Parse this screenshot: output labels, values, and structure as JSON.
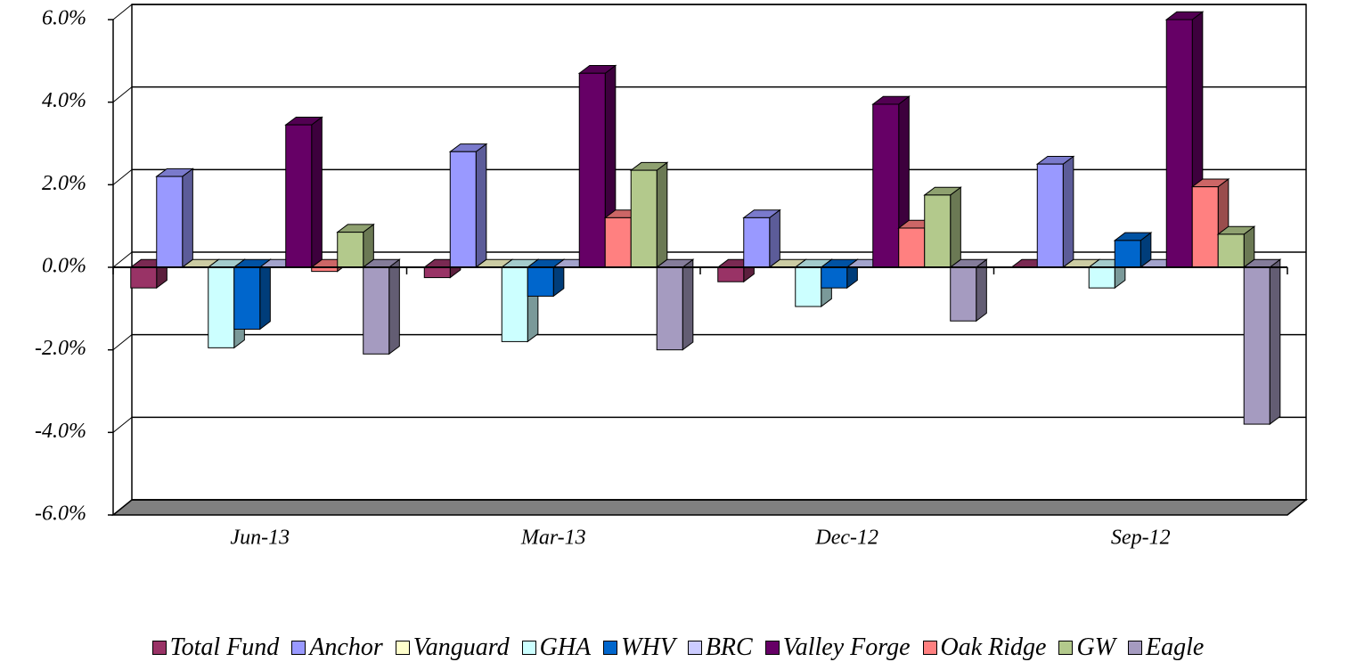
{
  "chart_data": {
    "type": "bar3d",
    "categories": [
      "Jun-13",
      "Mar-13",
      "Dec-12",
      "Sep-12"
    ],
    "series": [
      {
        "name": "Total Fund",
        "color": "#993366",
        "values": [
          -0.5,
          -0.25,
          -0.35,
          0
        ]
      },
      {
        "name": "Anchor",
        "color": "#9999ff",
        "values": [
          2.2,
          2.8,
          1.2,
          2.5
        ]
      },
      {
        "name": "Vanguard",
        "color": "#ffffcc",
        "values": [
          0,
          0,
          0,
          0
        ]
      },
      {
        "name": "GHA",
        "color": "#ccffff",
        "values": [
          -1.95,
          -1.8,
          -0.95,
          -0.5
        ]
      },
      {
        "name": "WHV",
        "color": "#0066cc",
        "values": [
          -1.5,
          -0.7,
          -0.5,
          0.65
        ]
      },
      {
        "name": "BRC",
        "color": "#ccccff",
        "values": [
          0,
          0,
          0,
          0
        ]
      },
      {
        "name": "Valley Forge",
        "color": "#660066",
        "values": [
          3.45,
          4.7,
          3.95,
          6.0
        ]
      },
      {
        "name": "Oak Ridge",
        "color": "#ff8080",
        "values": [
          -0.1,
          1.2,
          0.95,
          1.95
        ]
      },
      {
        "name": "GW",
        "color": "#b3c98c",
        "values": [
          0.85,
          2.35,
          1.75,
          0.8
        ]
      },
      {
        "name": "Eagle",
        "color": "#a59bc0",
        "values": [
          -2.1,
          -2.0,
          -1.3,
          -3.8
        ]
      }
    ],
    "ylim": [
      -6,
      6
    ],
    "yticks": [
      {
        "value": -6,
        "label": "-6.0%"
      },
      {
        "value": -4,
        "label": "-4.0%"
      },
      {
        "value": -2,
        "label": "-2.0%"
      },
      {
        "value": 0,
        "label": "0.0%"
      },
      {
        "value": 2,
        "label": "2.0%"
      },
      {
        "value": 4,
        "label": "4.0%"
      },
      {
        "value": 6,
        "label": "6.0%"
      }
    ],
    "grid": true,
    "legend": "bottom"
  }
}
